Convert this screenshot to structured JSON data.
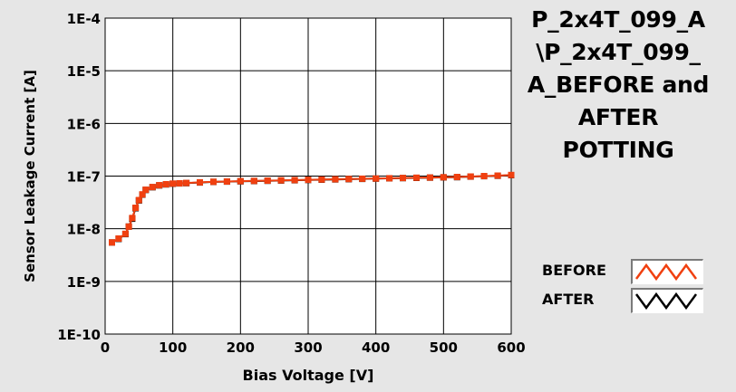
{
  "title_lines": [
    "P_2x4T_099_A",
    "\\P_2x4T_099_",
    "A_BEFORE and",
    "AFTER",
    "POTTING"
  ],
  "legend": [
    {
      "label": "BEFORE",
      "color": "#f04010"
    },
    {
      "label": "AFTER",
      "color": "#000000"
    }
  ],
  "colors": {
    "plot_background": "#ffffff",
    "window_background": "#e6e6e6",
    "grid": "#000000",
    "before_series": "#f04010",
    "after_series": "#000000"
  },
  "chart_data": {
    "type": "scatter",
    "xlabel": "Bias Voltage [V]",
    "ylabel": "Sensor Leakage Current [A]",
    "xlim": [
      0,
      600
    ],
    "ylim": [
      1e-10,
      0.0001
    ],
    "y_scale": "log",
    "grid": true,
    "legend_position": "right",
    "x_ticks": [
      "0",
      "100",
      "200",
      "300",
      "400",
      "500",
      "600"
    ],
    "y_ticks": [
      "1E-10",
      "1E-9",
      "1E-8",
      "1E-7",
      "1E-6",
      "1E-5",
      "1E-4"
    ],
    "series": [
      {
        "name": "BEFORE",
        "x": [
          10,
          20,
          30,
          35,
          40,
          45,
          50,
          55,
          60,
          70,
          80,
          90,
          100,
          110,
          120,
          140,
          160,
          180,
          200,
          220,
          240,
          260,
          280,
          300,
          320,
          340,
          360,
          380,
          400,
          420,
          440,
          460,
          480,
          500,
          520,
          540,
          560,
          580,
          600
        ],
        "y": [
          5.5e-09,
          6.5e-09,
          8e-09,
          1.1e-08,
          1.6e-08,
          2.5e-08,
          3.5e-08,
          4.5e-08,
          5.5e-08,
          6.2e-08,
          6.7e-08,
          7e-08,
          7.2e-08,
          7.3e-08,
          7.4e-08,
          7.6e-08,
          7.8e-08,
          7.9e-08,
          8e-08,
          8.1e-08,
          8.2e-08,
          8.3e-08,
          8.4e-08,
          8.5e-08,
          8.6e-08,
          8.7e-08,
          8.8e-08,
          8.9e-08,
          9e-08,
          9.1e-08,
          9.2e-08,
          9.3e-08,
          9.4e-08,
          9.5e-08,
          9.6e-08,
          9.8e-08,
          1e-07,
          1.02e-07,
          1.05e-07
        ]
      },
      {
        "name": "AFTER",
        "x": [
          10,
          20,
          30,
          35,
          40,
          45,
          50,
          55,
          60,
          70,
          80,
          90,
          100,
          110,
          120,
          140,
          160,
          180,
          200,
          220,
          240,
          260,
          280,
          300,
          320,
          340,
          360,
          380,
          400,
          420,
          440,
          460,
          480,
          500,
          520,
          540,
          560,
          580,
          600
        ],
        "y": [
          5.5e-09,
          6.4e-09,
          7.9e-09,
          1.1e-08,
          1.55e-08,
          2.45e-08,
          3.45e-08,
          4.45e-08,
          5.45e-08,
          6.15e-08,
          6.65e-08,
          6.95e-08,
          7.15e-08,
          7.25e-08,
          7.35e-08,
          7.55e-08,
          7.75e-08,
          7.85e-08,
          7.95e-08,
          8.05e-08,
          8.15e-08,
          8.25e-08,
          8.35e-08,
          8.45e-08,
          8.55e-08,
          8.65e-08,
          8.75e-08,
          8.85e-08,
          8.95e-08,
          9.05e-08,
          9.15e-08,
          9.25e-08,
          9.35e-08,
          9.45e-08,
          9.55e-08,
          9.75e-08,
          9.95e-08,
          1.01e-07,
          1.04e-07
        ]
      }
    ]
  }
}
